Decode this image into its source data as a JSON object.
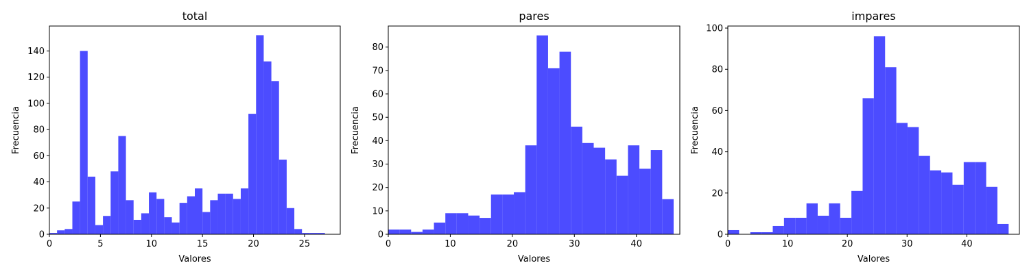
{
  "chart_data": [
    {
      "type": "bar",
      "title": "total",
      "xlabel": "Valores",
      "ylabel": "Frecuencia",
      "color": "#4c4cff",
      "xlim": [
        0,
        28.5
      ],
      "ylim": [
        0,
        159
      ],
      "xticks": [
        0,
        5,
        10,
        15,
        20,
        25
      ],
      "yticks": [
        0,
        20,
        40,
        60,
        80,
        100,
        120,
        140
      ],
      "bin_edges": [
        0,
        0.75,
        1.5,
        2.25,
        3.0,
        3.75,
        4.5,
        5.25,
        6.0,
        6.75,
        7.5,
        8.25,
        9.0,
        9.75,
        10.5,
        11.25,
        12.0,
        12.75,
        13.5,
        14.25,
        15.0,
        15.75,
        16.5,
        17.25,
        18.0,
        18.75,
        19.5,
        20.25,
        21.0,
        21.75,
        22.5,
        23.25,
        24.0,
        24.75,
        25.5,
        26.25,
        27.0
      ],
      "values": [
        1,
        3,
        4,
        25,
        140,
        44,
        7,
        14,
        48,
        75,
        26,
        11,
        16,
        32,
        27,
        13,
        9,
        24,
        29,
        35,
        17,
        26,
        31,
        31,
        27,
        35,
        92,
        152,
        132,
        117,
        57,
        20,
        4,
        1,
        1,
        1
      ]
    },
    {
      "type": "bar",
      "title": "pares",
      "xlabel": "Valores",
      "ylabel": "Frecuencia",
      "color": "#4c4cff",
      "xlim": [
        0,
        47
      ],
      "ylim": [
        0,
        89
      ],
      "xticks": [
        0,
        10,
        20,
        30,
        40
      ],
      "yticks": [
        0,
        10,
        20,
        30,
        40,
        50,
        60,
        70,
        80
      ],
      "bin_edges": [
        0,
        1.84,
        3.68,
        5.52,
        7.36,
        9.2,
        11.04,
        12.88,
        14.72,
        16.56,
        18.4,
        20.24,
        22.08,
        23.92,
        25.76,
        27.6,
        29.44,
        31.28,
        33.12,
        34.96,
        36.8,
        38.64,
        40.48,
        42.32,
        44.16,
        46.0
      ],
      "values": [
        2,
        2,
        1,
        2,
        5,
        9,
        9,
        8,
        7,
        17,
        17,
        18,
        38,
        85,
        71,
        78,
        46,
        39,
        37,
        32,
        25,
        38,
        28,
        36,
        15
      ]
    },
    {
      "type": "bar",
      "title": "impares",
      "xlabel": "Valores",
      "ylabel": "Frecuencia",
      "color": "#4c4cff",
      "xlim": [
        0,
        48.8
      ],
      "ylim": [
        0,
        101
      ],
      "xticks": [
        0,
        10,
        20,
        30,
        40
      ],
      "yticks": [
        0,
        20,
        40,
        60,
        80,
        100
      ],
      "bin_edges": [
        0,
        1.88,
        3.76,
        5.64,
        7.52,
        9.4,
        11.28,
        13.16,
        15.04,
        16.92,
        18.8,
        20.68,
        22.56,
        24.44,
        26.32,
        28.2,
        30.08,
        31.96,
        33.84,
        35.72,
        37.6,
        39.48,
        41.36,
        43.24,
        45.12,
        47.0
      ],
      "values": [
        2,
        0,
        1,
        1,
        4,
        8,
        8,
        15,
        9,
        15,
        8,
        21,
        66,
        96,
        81,
        54,
        52,
        38,
        31,
        30,
        24,
        35,
        35,
        23,
        5
      ]
    }
  ]
}
